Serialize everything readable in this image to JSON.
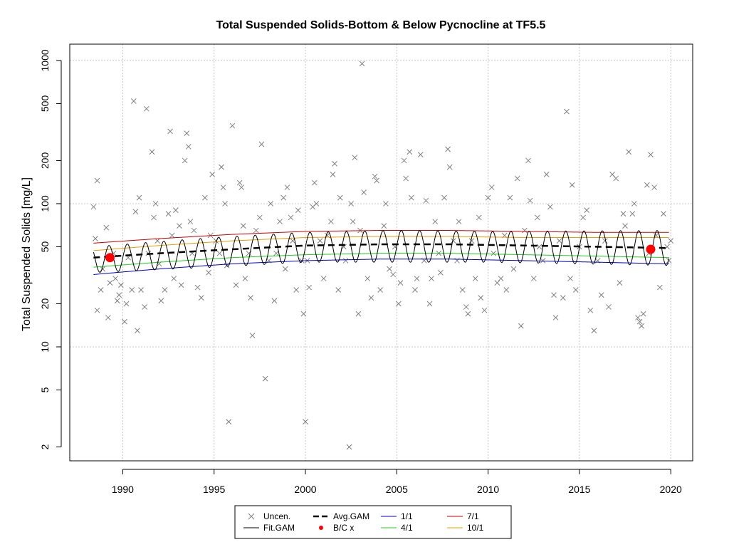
{
  "chart_data": {
    "type": "scatter",
    "title": "Total Suspended Solids-Bottom & Below Pycnocline at TF5.5",
    "xlabel": "",
    "ylabel": "Total Suspended Solids [mg/L]",
    "y_scale": "log",
    "xlim": [
      1987.1,
      2021.2
    ],
    "ylim": [
      1.6,
      1300
    ],
    "x_ticks": [
      1990,
      1995,
      2000,
      2005,
      2010,
      2015,
      2020
    ],
    "y_ticks": [
      2,
      5,
      10,
      20,
      50,
      100,
      200,
      500,
      1000
    ],
    "grid": true,
    "legend_position": "bottom-center",
    "colors": {
      "points": "#7f7f7f",
      "fit": "#000000",
      "avg": "#000000",
      "bc": "#ff0000",
      "s1_1": "#0000cc",
      "s4_1": "#22cc22",
      "s7_1": "#cc0000",
      "s10_1": "#e69f00"
    },
    "legend": [
      {
        "key": "uncen",
        "label": "Uncen."
      },
      {
        "key": "avg",
        "label": "Avg.GAM"
      },
      {
        "key": "s1_1",
        "label": "1/1"
      },
      {
        "key": "s7_1",
        "label": "7/1"
      },
      {
        "key": "fit",
        "label": "Fit.GAM"
      },
      {
        "key": "bc",
        "label": "B/C x"
      },
      {
        "key": "s4_1",
        "label": "4/1"
      },
      {
        "key": "s10_1",
        "label": "10/1"
      }
    ],
    "series": [
      {
        "name": "Uncen.",
        "points": [
          [
            1988.4,
            95
          ],
          [
            1988.5,
            57
          ],
          [
            1988.6,
            18
          ],
          [
            1988.6,
            145
          ],
          [
            1988.8,
            25
          ],
          [
            1988.9,
            35
          ],
          [
            1989.1,
            68
          ],
          [
            1989.2,
            16
          ],
          [
            1989.3,
            28
          ],
          [
            1989.5,
            45
          ],
          [
            1989.6,
            30
          ],
          [
            1989.7,
            21
          ],
          [
            1989.8,
            23
          ],
          [
            1989.9,
            27
          ],
          [
            1990.1,
            15
          ],
          [
            1990.2,
            20
          ],
          [
            1990.3,
            42
          ],
          [
            1990.5,
            25
          ],
          [
            1990.6,
            520
          ],
          [
            1990.7,
            88
          ],
          [
            1990.8,
            13
          ],
          [
            1990.9,
            110
          ],
          [
            1991.0,
            25
          ],
          [
            1991.2,
            19
          ],
          [
            1991.3,
            460
          ],
          [
            1991.4,
            45
          ],
          [
            1991.6,
            230
          ],
          [
            1991.7,
            80
          ],
          [
            1991.8,
            100
          ],
          [
            1991.9,
            55
          ],
          [
            1992.0,
            38
          ],
          [
            1992.1,
            21
          ],
          [
            1992.3,
            25
          ],
          [
            1992.5,
            85
          ],
          [
            1992.6,
            320
          ],
          [
            1992.7,
            60
          ],
          [
            1992.8,
            30
          ],
          [
            1992.9,
            90
          ],
          [
            1993.1,
            70
          ],
          [
            1993.2,
            27
          ],
          [
            1993.4,
            200
          ],
          [
            1993.5,
            310
          ],
          [
            1993.6,
            250
          ],
          [
            1993.7,
            75
          ],
          [
            1993.8,
            45
          ],
          [
            1993.9,
            65
          ],
          [
            1994.1,
            26
          ],
          [
            1994.3,
            22
          ],
          [
            1994.5,
            110
          ],
          [
            1994.7,
            33
          ],
          [
            1994.8,
            60
          ],
          [
            1994.9,
            160
          ],
          [
            1995.1,
            55
          ],
          [
            1995.3,
            45
          ],
          [
            1995.4,
            180
          ],
          [
            1995.5,
            130
          ],
          [
            1995.6,
            100
          ],
          [
            1995.7,
            37
          ],
          [
            1995.8,
            3
          ],
          [
            1996.0,
            350
          ],
          [
            1996.2,
            27
          ],
          [
            1996.4,
            140
          ],
          [
            1996.5,
            130
          ],
          [
            1996.6,
            70
          ],
          [
            1996.7,
            30
          ],
          [
            1996.9,
            45
          ],
          [
            1997.0,
            22
          ],
          [
            1997.1,
            12
          ],
          [
            1997.3,
            65
          ],
          [
            1997.5,
            80
          ],
          [
            1997.6,
            260
          ],
          [
            1997.8,
            6
          ],
          [
            1998.0,
            40
          ],
          [
            1998.1,
            100
          ],
          [
            1998.3,
            21
          ],
          [
            1998.4,
            45
          ],
          [
            1998.6,
            75
          ],
          [
            1998.8,
            110
          ],
          [
            1998.9,
            35
          ],
          [
            1999.0,
            130
          ],
          [
            1999.2,
            80
          ],
          [
            1999.3,
            55
          ],
          [
            1999.5,
            25
          ],
          [
            1999.6,
            90
          ],
          [
            1999.8,
            40
          ],
          [
            1999.9,
            17
          ],
          [
            2000.0,
            3
          ],
          [
            2000.1,
            40
          ],
          [
            2000.2,
            26
          ],
          [
            2000.4,
            95
          ],
          [
            2000.5,
            140
          ],
          [
            2000.6,
            100
          ],
          [
            2000.8,
            55
          ],
          [
            2001.0,
            30
          ],
          [
            2001.2,
            60
          ],
          [
            2001.4,
            75
          ],
          [
            2001.5,
            160
          ],
          [
            2001.6,
            190
          ],
          [
            2001.8,
            25
          ],
          [
            2001.9,
            110
          ],
          [
            2002.1,
            50
          ],
          [
            2002.2,
            40
          ],
          [
            2002.4,
            2
          ],
          [
            2002.5,
            100
          ],
          [
            2002.6,
            75
          ],
          [
            2002.7,
            210
          ],
          [
            2002.9,
            17
          ],
          [
            2003.0,
            65
          ],
          [
            2003.1,
            950
          ],
          [
            2003.2,
            120
          ],
          [
            2003.4,
            30
          ],
          [
            2003.6,
            22
          ],
          [
            2003.8,
            155
          ],
          [
            2003.9,
            145
          ],
          [
            2004.1,
            25
          ],
          [
            2004.3,
            70
          ],
          [
            2004.4,
            100
          ],
          [
            2004.6,
            35
          ],
          [
            2004.8,
            32
          ],
          [
            2004.9,
            50
          ],
          [
            2005.1,
            20
          ],
          [
            2005.2,
            28
          ],
          [
            2005.4,
            200
          ],
          [
            2005.5,
            150
          ],
          [
            2005.7,
            230
          ],
          [
            2005.8,
            110
          ],
          [
            2006.0,
            25
          ],
          [
            2006.1,
            30
          ],
          [
            2006.3,
            220
          ],
          [
            2006.5,
            40
          ],
          [
            2006.6,
            105
          ],
          [
            2006.8,
            20
          ],
          [
            2006.9,
            30
          ],
          [
            2007.1,
            75
          ],
          [
            2007.3,
            45
          ],
          [
            2007.4,
            33
          ],
          [
            2007.6,
            110
          ],
          [
            2007.8,
            240
          ],
          [
            2007.9,
            180
          ],
          [
            2008.1,
            55
          ],
          [
            2008.3,
            40
          ],
          [
            2008.4,
            75
          ],
          [
            2008.6,
            25
          ],
          [
            2008.8,
            19
          ],
          [
            2008.9,
            17
          ],
          [
            2009.1,
            55
          ],
          [
            2009.3,
            30
          ],
          [
            2009.5,
            80
          ],
          [
            2009.6,
            22
          ],
          [
            2009.8,
            18
          ],
          [
            2010.0,
            110
          ],
          [
            2010.2,
            130
          ],
          [
            2010.3,
            45
          ],
          [
            2010.5,
            28
          ],
          [
            2010.7,
            30
          ],
          [
            2010.9,
            60
          ],
          [
            2011.0,
            25
          ],
          [
            2011.2,
            110
          ],
          [
            2011.4,
            35
          ],
          [
            2011.6,
            150
          ],
          [
            2011.8,
            14
          ],
          [
            2012.0,
            65
          ],
          [
            2012.2,
            200
          ],
          [
            2012.3,
            105
          ],
          [
            2012.5,
            30
          ],
          [
            2012.7,
            80
          ],
          [
            2012.8,
            50
          ],
          [
            2013.0,
            40
          ],
          [
            2013.2,
            160
          ],
          [
            2013.4,
            95
          ],
          [
            2013.6,
            23
          ],
          [
            2013.7,
            16
          ],
          [
            2013.9,
            55
          ],
          [
            2014.1,
            22
          ],
          [
            2014.3,
            440
          ],
          [
            2014.5,
            30
          ],
          [
            2014.6,
            135
          ],
          [
            2014.8,
            25
          ],
          [
            2015.0,
            50
          ],
          [
            2015.2,
            80
          ],
          [
            2015.4,
            90
          ],
          [
            2015.6,
            18
          ],
          [
            2015.8,
            13
          ],
          [
            2016.0,
            40
          ],
          [
            2016.2,
            23
          ],
          [
            2016.4,
            55
          ],
          [
            2016.6,
            19
          ],
          [
            2016.8,
            160
          ],
          [
            2017.0,
            150
          ],
          [
            2017.2,
            28
          ],
          [
            2017.4,
            85
          ],
          [
            2017.5,
            70
          ],
          [
            2017.7,
            230
          ],
          [
            2017.9,
            85
          ],
          [
            2018.0,
            100
          ],
          [
            2018.2,
            16
          ],
          [
            2018.3,
            15
          ],
          [
            2018.4,
            14
          ],
          [
            2018.5,
            17
          ],
          [
            2018.7,
            135
          ],
          [
            2018.8,
            45
          ],
          [
            2018.9,
            220
          ],
          [
            2019.1,
            130
          ],
          [
            2019.2,
            60
          ],
          [
            2019.4,
            26
          ],
          [
            2019.6,
            85
          ],
          [
            2019.8,
            50
          ],
          [
            2019.9,
            40
          ],
          [
            2020.0,
            55
          ]
        ]
      },
      {
        "name": "Fit.GAM",
        "function": "seasonal",
        "annual_peak_by_year": [
          [
            1988.4,
            50
          ],
          [
            1995,
            58
          ],
          [
            2000,
            63
          ],
          [
            2005,
            65
          ],
          [
            2010,
            64
          ],
          [
            2020,
            65
          ]
        ],
        "annual_trough_by_year": [
          [
            1988.4,
            33
          ],
          [
            1995,
            36
          ],
          [
            2000,
            39
          ],
          [
            2005,
            39
          ],
          [
            2010,
            39
          ],
          [
            2020,
            37
          ]
        ],
        "x_start": 1988.4,
        "x_end": 2019.9
      },
      {
        "name": "Avg.GAM",
        "points": [
          [
            1988.4,
            42
          ],
          [
            1992,
            45
          ],
          [
            1996,
            48
          ],
          [
            2000,
            51
          ],
          [
            2004,
            52
          ],
          [
            2008,
            52
          ],
          [
            2012,
            51
          ],
          [
            2016,
            50
          ],
          [
            2019.9,
            49
          ]
        ]
      },
      {
        "name": "B/C x",
        "points": [
          [
            1989.3,
            42
          ],
          [
            2018.9,
            48
          ]
        ]
      },
      {
        "name": "1/1",
        "points": [
          [
            1988.4,
            32
          ],
          [
            1992,
            35
          ],
          [
            1996,
            38
          ],
          [
            2000,
            40
          ],
          [
            2004,
            41
          ],
          [
            2008,
            41
          ],
          [
            2012,
            40
          ],
          [
            2016,
            39
          ],
          [
            2019.9,
            38
          ]
        ]
      },
      {
        "name": "4/1",
        "points": [
          [
            1988.4,
            36
          ],
          [
            1992,
            39
          ],
          [
            1996,
            42
          ],
          [
            2000,
            44
          ],
          [
            2004,
            45
          ],
          [
            2008,
            45
          ],
          [
            2012,
            44
          ],
          [
            2016,
            43
          ],
          [
            2019.9,
            42
          ]
        ]
      },
      {
        "name": "7/1",
        "points": [
          [
            1988.4,
            53
          ],
          [
            1992,
            57
          ],
          [
            1996,
            61
          ],
          [
            2000,
            64
          ],
          [
            2004,
            65
          ],
          [
            2008,
            65
          ],
          [
            2012,
            64
          ],
          [
            2016,
            63
          ],
          [
            2019.9,
            63
          ]
        ]
      },
      {
        "name": "10/1",
        "points": [
          [
            1988.4,
            47
          ],
          [
            1992,
            51
          ],
          [
            1996,
            55
          ],
          [
            2000,
            58
          ],
          [
            2004,
            59
          ],
          [
            2008,
            59
          ],
          [
            2012,
            58
          ],
          [
            2016,
            58
          ],
          [
            2019.9,
            58
          ]
        ]
      }
    ]
  }
}
